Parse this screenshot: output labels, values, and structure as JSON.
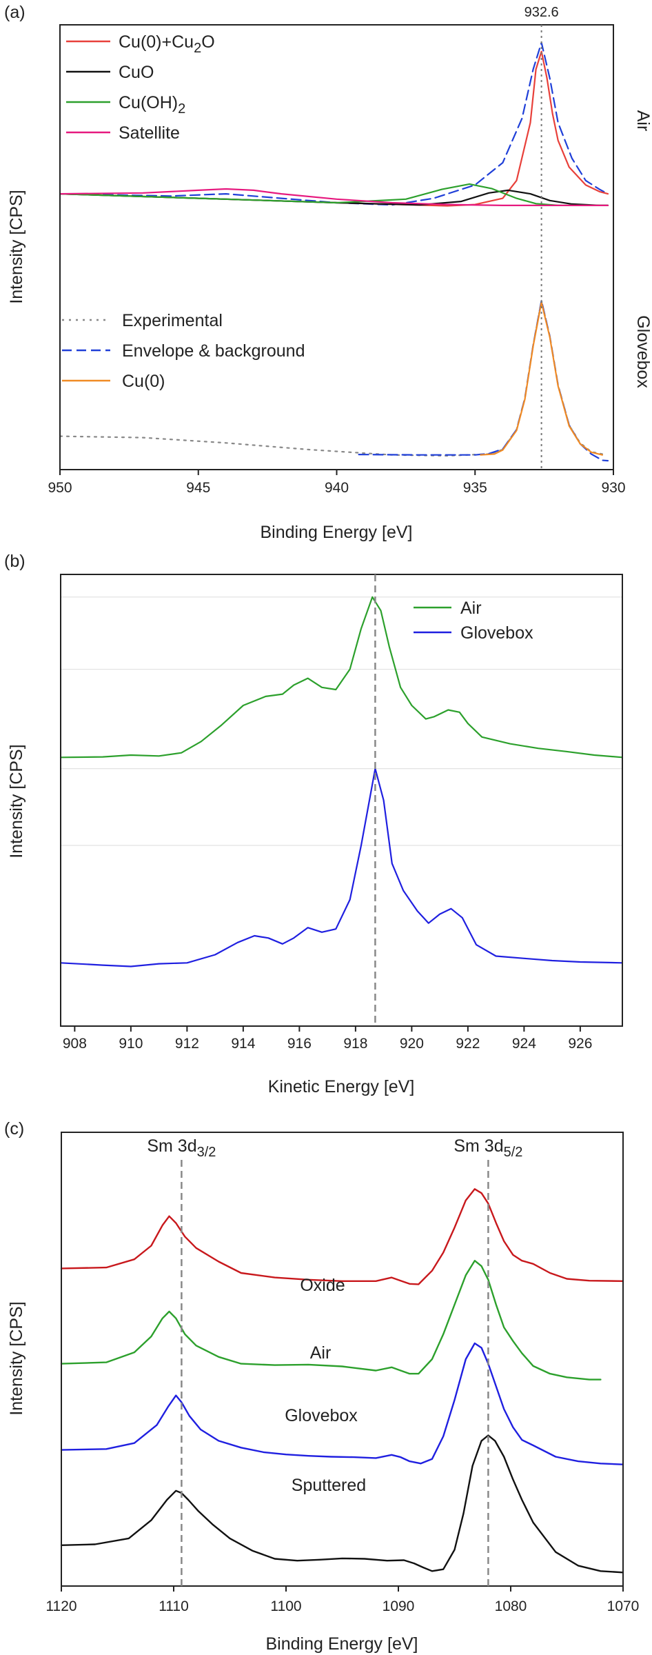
{
  "chart_data": [
    {
      "id": "a",
      "type": "line",
      "panel_label": "(a)",
      "xlabel": "Binding Energy [eV]",
      "ylabel": "Intensity [CPS]",
      "xlim": [
        950,
        930
      ],
      "xticks": [
        "950",
        "945",
        "940",
        "935",
        "930"
      ],
      "xtick_values": [
        950,
        945,
        940,
        935,
        930
      ],
      "ylim": [
        0,
        100
      ],
      "peak_label": "932.6",
      "peak_position": 932.6,
      "side_labels": [
        "Air",
        "Glovebox"
      ],
      "legend_top": [
        {
          "label": "Cu(0)+Cu",
          "sub": "2",
          "suffix": "O",
          "color": "#e8403a"
        },
        {
          "label": "CuO",
          "sub": "",
          "suffix": "",
          "color": "#111111"
        },
        {
          "label": "Cu(OH)",
          "sub": "2",
          "suffix": "",
          "color": "#2ca02c"
        },
        {
          "label": "Satellite",
          "sub": "",
          "suffix": "",
          "color": "#e6197f"
        }
      ],
      "legend_bottom": [
        {
          "label": "Experimental",
          "color": "#888888"
        },
        {
          "label": "Envelope & background",
          "color": "#1f3fd8"
        },
        {
          "label": "Cu(0)",
          "color": "#f08a24"
        }
      ],
      "series": [
        {
          "name": "Air Envelope",
          "color": "#1f3fd8",
          "dash": "14,7",
          "x": [
            950,
            946,
            944,
            942,
            940,
            938,
            936.5,
            935,
            934,
            933.3,
            932.9,
            932.6,
            932.3,
            932,
            931.5,
            931,
            930.5,
            930.2
          ],
          "y": [
            62,
            61.5,
            62,
            61,
            60,
            59.5,
            61,
            64,
            69,
            79,
            90,
            96,
            88,
            78,
            70,
            65,
            63,
            62
          ]
        },
        {
          "name": "Air Cu(0)+Cu2O",
          "color": "#e8403a",
          "dash": "",
          "x": [
            950,
            940,
            936,
            935,
            934,
            933.5,
            933,
            932.8,
            932.6,
            932.4,
            932.2,
            932,
            931.6,
            931,
            930.5,
            930.2
          ],
          "y": [
            62,
            60,
            59.3,
            59.6,
            61,
            65,
            78,
            90,
            94,
            88,
            80,
            74,
            68,
            64,
            62.5,
            62
          ]
        },
        {
          "name": "Air CuO",
          "color": "#111111",
          "dash": "",
          "x": [
            950,
            940,
            937,
            935.5,
            934.5,
            933.8,
            933,
            932.3,
            931.5,
            930.5,
            930.2
          ],
          "y": [
            62,
            60,
            59.5,
            60.3,
            62.2,
            62.8,
            62,
            60.5,
            59.7,
            59.4,
            59.4
          ]
        },
        {
          "name": "Air Cu(OH)2",
          "color": "#2ca02c",
          "dash": "",
          "x": [
            950,
            940,
            937.5,
            936.2,
            935.2,
            934.4,
            933.5,
            932.8,
            932,
            931,
            930.2
          ],
          "y": [
            62,
            60,
            60.8,
            63,
            64.2,
            63.2,
            61,
            59.8,
            59.4,
            59.4,
            59.4
          ]
        },
        {
          "name": "Air Satellite",
          "color": "#e6197f",
          "dash": "",
          "x": [
            950,
            947,
            945,
            944,
            943,
            942,
            940,
            938,
            936,
            934,
            932,
            930.2
          ],
          "y": [
            62,
            62.2,
            62.8,
            63.1,
            62.8,
            62,
            60.8,
            60,
            59.6,
            59.4,
            59.4,
            59.4
          ]
        },
        {
          "name": "Glovebox Experimental",
          "color": "#888888",
          "dash": "3,7",
          "x": [
            950,
            947,
            944,
            941,
            938,
            936,
            934.5,
            934,
            933.5,
            933.2,
            932.9,
            932.6,
            932.3,
            932,
            931.6,
            931.2,
            930.8,
            930.4
          ],
          "y": [
            7.5,
            7.2,
            6,
            4.5,
            3.3,
            3.1,
            3.5,
            4.5,
            9,
            16,
            28,
            38,
            30,
            19,
            10,
            6,
            4,
            3.5
          ]
        },
        {
          "name": "Glovebox Envelope",
          "color": "#1f3fd8",
          "dash": "14,7",
          "x": [
            939.2,
            937,
            935,
            934.5,
            934,
            933.5,
            933.2,
            932.9,
            932.6,
            932.3,
            932,
            931.6,
            931.2,
            930.8,
            930.4,
            930.2
          ],
          "y": [
            3.4,
            3.3,
            3.3,
            3.6,
            4.6,
            9,
            16,
            28,
            38,
            30,
            19,
            10,
            5.8,
            3.5,
            2.1,
            2
          ]
        },
        {
          "name": "Glovebox Cu(0)",
          "color": "#f08a24",
          "dash": "",
          "x": [
            934.8,
            934.3,
            934,
            933.5,
            933.2,
            932.9,
            932.6,
            932.3,
            932,
            931.6,
            931.2,
            930.8,
            930.4
          ],
          "y": [
            3.3,
            3.5,
            4.4,
            8.8,
            15.8,
            27.8,
            37.6,
            29.8,
            18.8,
            9.8,
            5.8,
            3.9,
            3.3
          ]
        }
      ]
    },
    {
      "id": "b",
      "type": "line",
      "panel_label": "(b)",
      "xlabel": "Kinetic Energy [eV]",
      "ylabel": "Intensity [CPS]",
      "xlim": [
        907.5,
        927.5
      ],
      "xticks": [
        "908",
        "910",
        "912",
        "914",
        "916",
        "918",
        "920",
        "922",
        "924",
        "926"
      ],
      "xtick_values": [
        908,
        910,
        912,
        914,
        916,
        918,
        920,
        922,
        924,
        926
      ],
      "ylim": [
        0,
        100
      ],
      "peak_position": 918.7,
      "legend": [
        {
          "label": "Air",
          "color": "#2ca02c"
        },
        {
          "label": "Glovebox",
          "color": "#1f1fe0"
        }
      ],
      "series": [
        {
          "name": "Air",
          "color": "#2ca02c",
          "x": [
            907.5,
            909,
            910,
            911,
            911.8,
            912.5,
            913.2,
            914,
            914.8,
            915.4,
            915.8,
            916.3,
            916.8,
            917.3,
            917.8,
            918.2,
            918.6,
            918.9,
            919.2,
            919.6,
            920,
            920.5,
            920.8,
            921.3,
            921.7,
            922,
            922.5,
            923.5,
            924.5,
            925.5,
            926.5,
            927.5
          ],
          "y": [
            59.5,
            59.6,
            60,
            59.8,
            60.5,
            63,
            66.5,
            71,
            73,
            73.5,
            75.5,
            77,
            75,
            74.5,
            79,
            88,
            95,
            92,
            84,
            75,
            71,
            68,
            68.5,
            70,
            69.5,
            67,
            64,
            62.5,
            61.5,
            60.8,
            60,
            59.5
          ]
        },
        {
          "name": "Glovebox",
          "color": "#1f1fe0",
          "x": [
            907.5,
            909,
            910,
            911,
            912,
            913,
            913.8,
            914.4,
            914.9,
            915.4,
            915.8,
            916.3,
            916.8,
            917.3,
            917.8,
            918.2,
            918.7,
            919,
            919.3,
            919.7,
            920.2,
            920.6,
            921,
            921.4,
            921.8,
            922.3,
            923,
            924,
            925,
            926,
            927.5
          ],
          "y": [
            14,
            13.5,
            13.2,
            13.8,
            14,
            15.8,
            18.5,
            20,
            19.5,
            18.2,
            19.5,
            21.8,
            20.8,
            21.5,
            28,
            40,
            57,
            50,
            36,
            30,
            25.5,
            22.8,
            24.8,
            26,
            24,
            18,
            15.5,
            15,
            14.5,
            14.2,
            14
          ]
        }
      ]
    },
    {
      "id": "c",
      "type": "line",
      "panel_label": "(c)",
      "xlabel": "Binding Energy [eV]",
      "ylabel": "Intensity [CPS]",
      "xlim": [
        1120,
        1070
      ],
      "xticks": [
        "1120",
        "1110",
        "1100",
        "1090",
        "1080",
        "1070"
      ],
      "xtick_values": [
        1120,
        1110,
        1100,
        1090,
        1080,
        1070
      ],
      "ylim": [
        0,
        100
      ],
      "peak_marks": [
        {
          "label": "Sm 3d",
          "sub": "3/2",
          "position": 1109.3
        },
        {
          "label": "Sm 3d",
          "sub": "5/2",
          "position": 1082.0
        }
      ],
      "series": [
        {
          "name": "Oxide",
          "label": "Oxide",
          "color": "#c8181c",
          "x": [
            1120,
            1116,
            1113.5,
            1112,
            1111,
            1110.4,
            1109.8,
            1109,
            1108,
            1106,
            1104,
            1101,
            1098,
            1095,
            1092,
            1090.6,
            1089.8,
            1089,
            1088.2,
            1087,
            1086,
            1085,
            1084,
            1083.2,
            1082.6,
            1082,
            1081.3,
            1080.6,
            1079.8,
            1079,
            1078,
            1076.5,
            1075,
            1073,
            1070
          ],
          "y": [
            70,
            70.2,
            72,
            75,
            79.5,
            81.5,
            80,
            77,
            74.5,
            71.5,
            69,
            68,
            67.5,
            67.2,
            67.2,
            68,
            67.3,
            66.6,
            66.5,
            69.5,
            73.5,
            79,
            85,
            87.5,
            86.6,
            84.3,
            80,
            76,
            73,
            71.7,
            71,
            69,
            67.7,
            67.3,
            67.2
          ]
        },
        {
          "name": "Air",
          "label": "Air",
          "color": "#2ca02c",
          "x": [
            1120,
            1116,
            1113.5,
            1112,
            1111,
            1110.4,
            1109.8,
            1109,
            1108,
            1106,
            1104,
            1101,
            1098,
            1095,
            1092,
            1090.6,
            1089.8,
            1089,
            1088.2,
            1087,
            1086,
            1085,
            1084,
            1083.2,
            1082.6,
            1082,
            1081.3,
            1080.6,
            1079.8,
            1079,
            1078,
            1076.5,
            1075,
            1073,
            1072
          ],
          "y": [
            49,
            49.3,
            51.5,
            55,
            59,
            60.5,
            59,
            55.5,
            53,
            50.5,
            49,
            48.7,
            48.8,
            48.4,
            47.5,
            48.2,
            47.5,
            46.8,
            46.8,
            50,
            55.5,
            62,
            68.5,
            71.7,
            70.5,
            67.5,
            62,
            57,
            54,
            51.3,
            48.5,
            46.8,
            46,
            45.5,
            45.5
          ]
        },
        {
          "name": "Glovebox",
          "label": "Glovebox",
          "color": "#1f1fe0",
          "x": [
            1120,
            1116,
            1113.5,
            1111.5,
            1110.5,
            1109.8,
            1109.3,
            1108.6,
            1107.6,
            1106,
            1104,
            1102,
            1100,
            1098,
            1096,
            1094,
            1092,
            1090.6,
            1089.8,
            1089,
            1088,
            1087,
            1086,
            1085,
            1084,
            1083.2,
            1082.6,
            1082,
            1081.3,
            1080.6,
            1079.8,
            1079,
            1078,
            1076,
            1074,
            1072,
            1070
          ],
          "y": [
            30,
            30.2,
            31.5,
            35.5,
            39.5,
            42,
            40.5,
            37.5,
            34.5,
            32,
            30.5,
            29.5,
            29,
            28.7,
            28.5,
            28.4,
            28.2,
            28.9,
            28.4,
            27.5,
            27,
            28,
            33,
            41,
            50,
            53.5,
            52.5,
            49,
            44,
            39,
            35,
            32.2,
            31,
            28.5,
            27.5,
            27,
            26.8
          ]
        },
        {
          "name": "Sputtered",
          "label": "Sputtered",
          "color": "#111111",
          "x": [
            1120,
            1117,
            1114,
            1112,
            1110.6,
            1109.8,
            1109.3,
            1108.7,
            1107.8,
            1106.5,
            1105,
            1103,
            1101,
            1099,
            1097,
            1095,
            1093,
            1091,
            1089.5,
            1088.6,
            1087.8,
            1087,
            1086,
            1085,
            1084.2,
            1083.4,
            1082.6,
            1082,
            1081.4,
            1080.6,
            1079.8,
            1079,
            1078,
            1076,
            1074,
            1072,
            1070
          ],
          "y": [
            9,
            9.2,
            10.5,
            14.5,
            19,
            21,
            20.5,
            19,
            16.5,
            13.5,
            10.5,
            7.8,
            6,
            5.6,
            5.8,
            6.1,
            6,
            5.6,
            5.7,
            5,
            4.1,
            3.3,
            3.7,
            8,
            16,
            26.5,
            32,
            33.2,
            32,
            28.5,
            23.5,
            19,
            14,
            7.5,
            4.5,
            3.3,
            3
          ]
        }
      ]
    }
  ]
}
